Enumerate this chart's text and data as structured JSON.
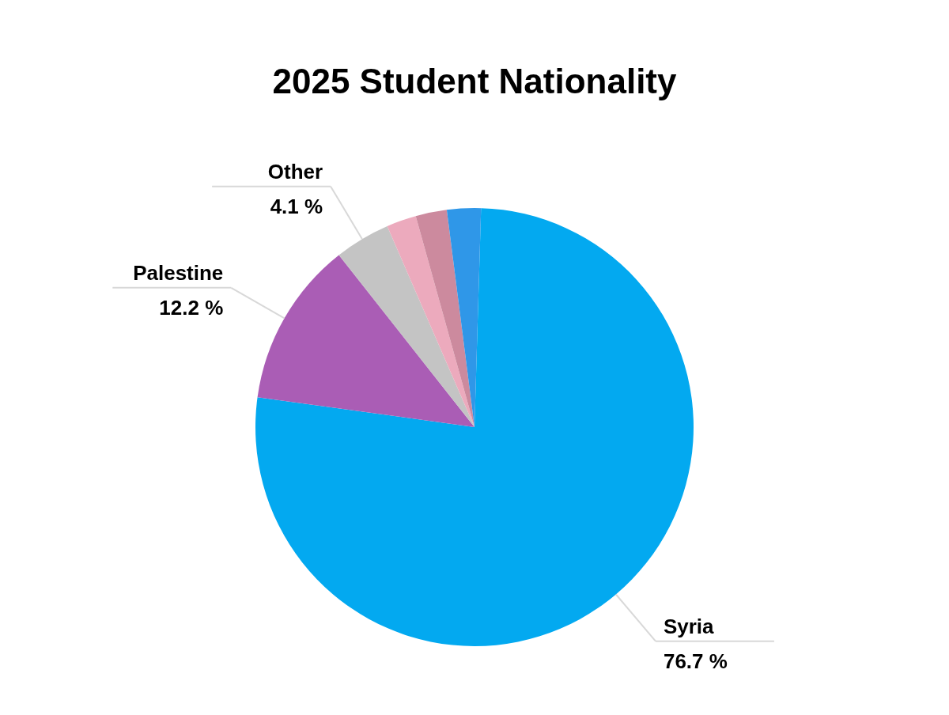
{
  "chart_data": {
    "type": "pie",
    "title": "2025 Student Nationality",
    "categories": [
      "Syria",
      "Palestine",
      "Other",
      null,
      null,
      null
    ],
    "values": [
      76.7,
      12.2,
      4.1,
      2.2,
      2.3,
      2.5
    ],
    "colors": [
      "#03a9f0",
      "#aa5db5",
      "#c4c4c4",
      "#ecaabd",
      "#cc8a9e",
      "#2f97e8"
    ],
    "value_labels": [
      "76.7 %",
      "12.2 %",
      "4.1 %",
      null,
      null,
      null
    ]
  }
}
